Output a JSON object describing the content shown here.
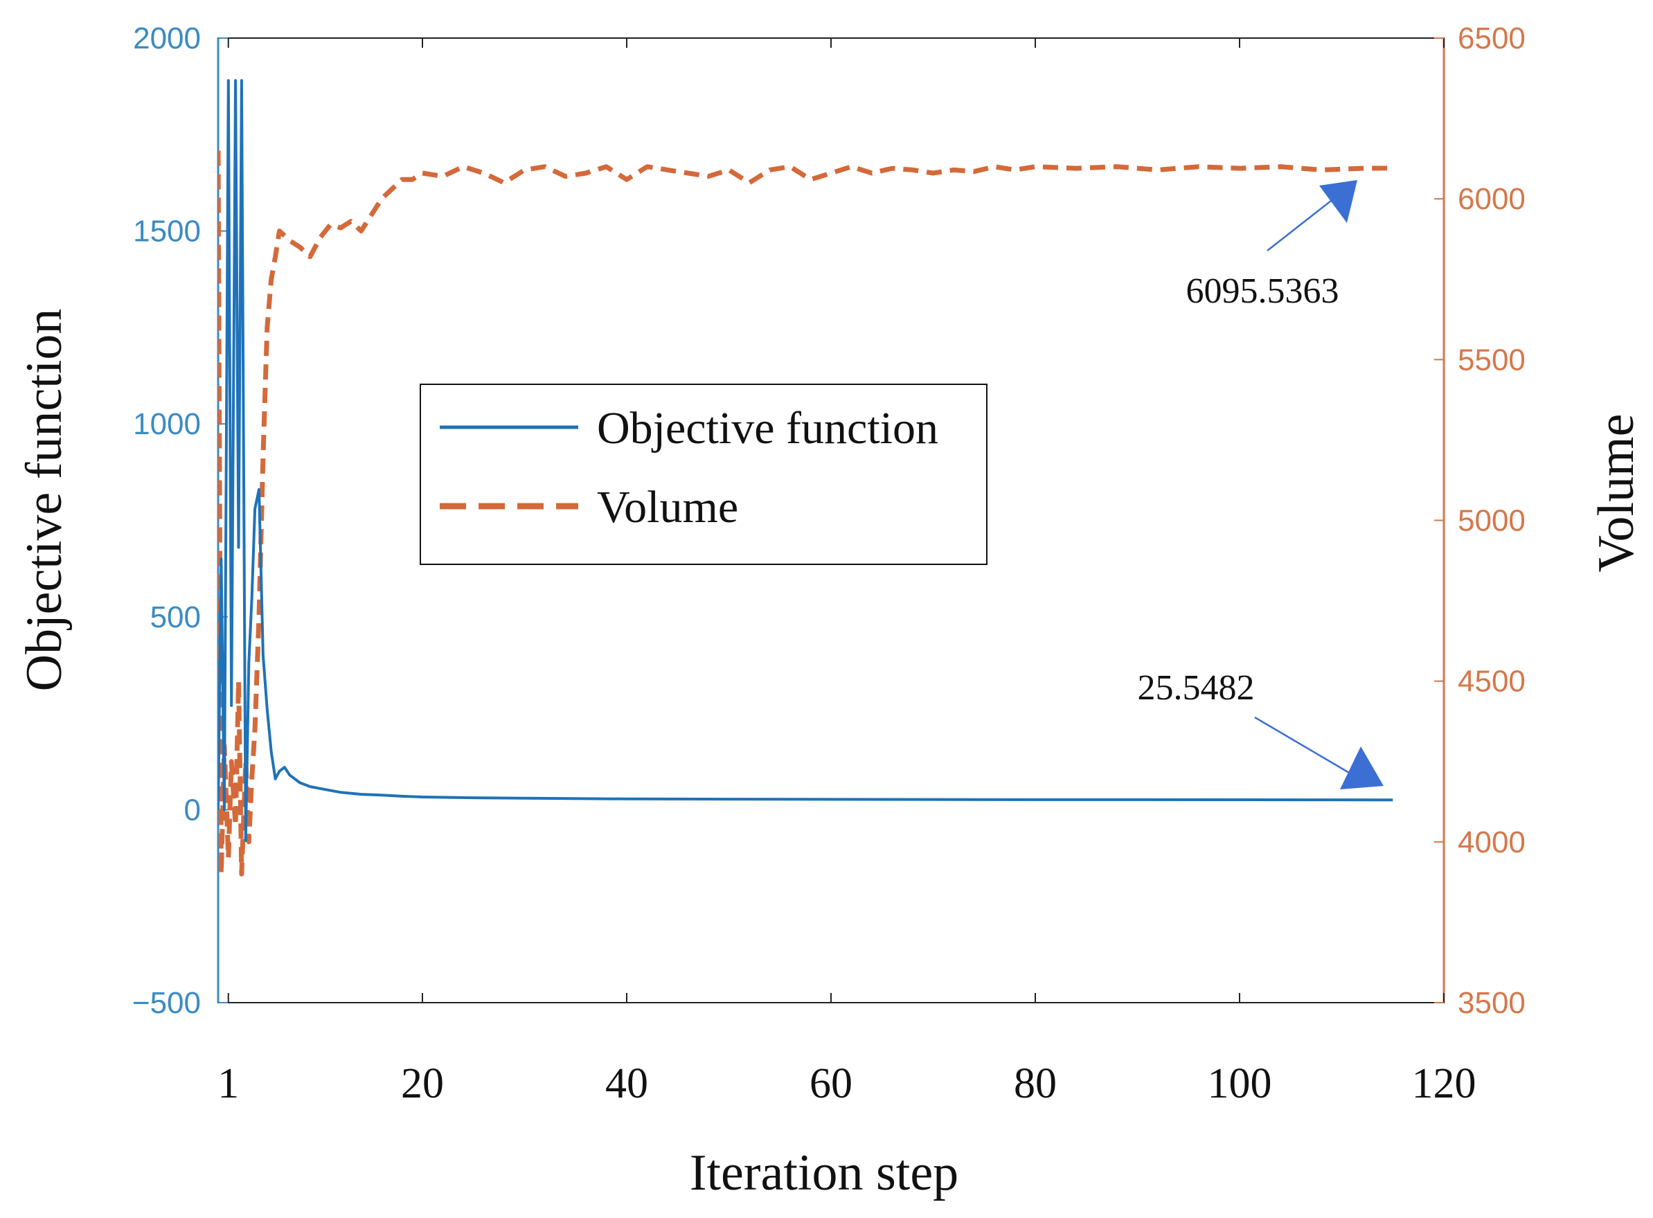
{
  "chart_data": {
    "type": "line",
    "title": "",
    "xlabel": "Iteration step",
    "ylabel_left": "Objective function",
    "ylabel_right": "Volume",
    "xlim": [
      0,
      120
    ],
    "ylim_left": [
      -500,
      2000
    ],
    "ylim_right": [
      3500,
      6500
    ],
    "x_ticks": [
      1,
      20,
      40,
      60,
      80,
      100,
      120
    ],
    "y_ticks_left": [
      2000,
      1500,
      1000,
      500,
      0,
      -500
    ],
    "y_ticks_left_labels": [
      "2000",
      "1500",
      "1000",
      "500",
      "0",
      "−500"
    ],
    "y_ticks_right": [
      6500,
      6000,
      5500,
      5000,
      4500,
      4000,
      3500
    ],
    "grid": false,
    "legend_position": "center-left",
    "colors": {
      "objective": "#1f72b8",
      "volume": "#d4693a",
      "left_axis": "#3a8bc2",
      "right_axis": "#d4784b",
      "annotation_arrow": "#3b6fd4"
    },
    "series": [
      {
        "name": "Objective function",
        "axis": "left",
        "style": "solid",
        "x": [
          0,
          0.3,
          0.6,
          1.0,
          1.3,
          1.7,
          2.0,
          2.3,
          2.7,
          3.0,
          3.3,
          3.6,
          4.0,
          4.4,
          4.8,
          5.2,
          5.6,
          6.0,
          6.5,
          7.0,
          8,
          9,
          10,
          12,
          14,
          16,
          18,
          20,
          25,
          30,
          40,
          50,
          60,
          70,
          80,
          90,
          100,
          110,
          115
        ],
        "values": [
          0,
          650,
          0,
          1890,
          270,
          1890,
          680,
          1890,
          -80,
          380,
          550,
          780,
          830,
          400,
          260,
          150,
          80,
          100,
          110,
          90,
          70,
          60,
          55,
          45,
          40,
          38,
          35,
          33,
          31,
          30,
          28,
          27.5,
          27,
          26.5,
          26,
          26,
          25.8,
          25.6,
          25.5482
        ]
      },
      {
        "name": "Volume",
        "axis": "right",
        "style": "dashed",
        "x": [
          0,
          0.3,
          0.6,
          1.0,
          1.3,
          1.7,
          2.0,
          2.3,
          2.7,
          3.0,
          3.3,
          3.6,
          4.0,
          4.4,
          4.8,
          5.2,
          5.6,
          6.0,
          7.0,
          8,
          9,
          10,
          11,
          12,
          13,
          14,
          15,
          16,
          17,
          18,
          19,
          20,
          22,
          24,
          26,
          28,
          30,
          32,
          34,
          36,
          38,
          40,
          42,
          44,
          46,
          48,
          50,
          52,
          54,
          56,
          58,
          60,
          62,
          64,
          66,
          68,
          70,
          72,
          74,
          76,
          78,
          80,
          84,
          88,
          92,
          96,
          100,
          104,
          108,
          112,
          115
        ],
        "values": [
          6150,
          3900,
          4300,
          3950,
          4250,
          4050,
          4500,
          3900,
          4250,
          4000,
          4200,
          4350,
          4700,
          5200,
          5600,
          5750,
          5820,
          5900,
          5870,
          5850,
          5820,
          5880,
          5920,
          5910,
          5930,
          5900,
          5950,
          6000,
          6030,
          6060,
          6060,
          6080,
          6070,
          6100,
          6080,
          6050,
          6090,
          6100,
          6070,
          6080,
          6100,
          6060,
          6100,
          6090,
          6080,
          6070,
          6090,
          6050,
          6090,
          6100,
          6060,
          6080,
          6100,
          6080,
          6095,
          6090,
          6080,
          6090,
          6085,
          6100,
          6090,
          6100,
          6095,
          6100,
          6090,
          6100,
          6095,
          6100,
          6090,
          6095,
          6095.5363
        ]
      }
    ],
    "annotations": [
      {
        "text": "6095.5363",
        "target_x": 115,
        "target_y": 6095.5363,
        "axis": "right"
      },
      {
        "text": "25.5482",
        "target_x": 115,
        "target_y": 25.5482,
        "axis": "left"
      }
    ]
  }
}
